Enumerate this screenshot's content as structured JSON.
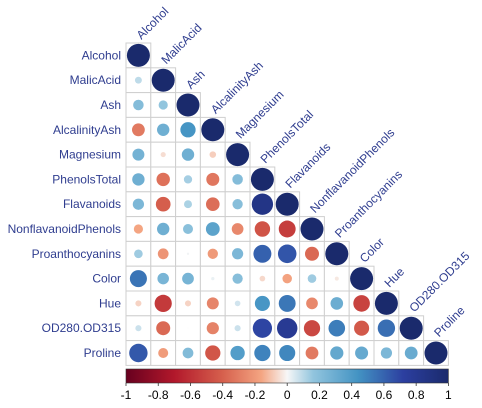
{
  "chart_data": {
    "type": "heatmap",
    "title": "",
    "variables": [
      "Alcohol",
      "MalicAcid",
      "Ash",
      "AlcalinityAsh",
      "Magnesium",
      "PhenolsTotal",
      "Flavanoids",
      "NonflavanoidPhenols",
      "Proanthocyanins",
      "Color",
      "Hue",
      "OD280.OD315",
      "Proline"
    ],
    "matrix": [
      [
        1,
        0.09,
        0.21,
        -0.31,
        0.27,
        0.29,
        0.24,
        -0.16,
        0.14,
        0.55,
        -0.07,
        0.07,
        0.64
      ],
      [
        0.09,
        1,
        0.16,
        0.29,
        -0.05,
        -0.34,
        -0.41,
        0.29,
        -0.22,
        0.25,
        -0.56,
        -0.37,
        -0.19
      ],
      [
        0.21,
        0.16,
        1,
        0.44,
        0.29,
        0.13,
        0.12,
        0.19,
        0.01,
        0.26,
        -0.07,
        0.0,
        0.22
      ],
      [
        -0.31,
        0.29,
        0.44,
        1,
        -0.08,
        -0.32,
        -0.35,
        0.36,
        -0.2,
        0.02,
        -0.27,
        -0.28,
        -0.44
      ],
      [
        0.27,
        -0.05,
        0.29,
        -0.08,
        1,
        0.21,
        0.2,
        -0.26,
        0.24,
        0.2,
        0.06,
        0.07,
        0.39
      ],
      [
        0.29,
        -0.34,
        0.13,
        -0.32,
        0.21,
        1,
        0.86,
        -0.45,
        0.61,
        -0.06,
        0.43,
        0.7,
        0.5
      ],
      [
        0.24,
        -0.41,
        0.12,
        -0.35,
        0.2,
        0.86,
        1,
        -0.54,
        0.65,
        -0.17,
        0.54,
        0.79,
        0.49
      ],
      [
        -0.16,
        0.29,
        0.19,
        0.36,
        -0.26,
        -0.45,
        -0.54,
        1,
        -0.37,
        0.14,
        -0.26,
        -0.5,
        -0.31
      ],
      [
        0.14,
        -0.22,
        0.01,
        -0.2,
        0.24,
        0.61,
        0.65,
        -0.37,
        1,
        -0.03,
        0.3,
        0.52,
        0.33
      ],
      [
        0.55,
        0.25,
        0.26,
        0.02,
        0.2,
        -0.06,
        -0.17,
        0.14,
        -0.03,
        1,
        -0.52,
        -0.43,
        0.32
      ],
      [
        -0.07,
        -0.56,
        -0.07,
        -0.27,
        0.06,
        0.43,
        0.54,
        -0.26,
        0.3,
        -0.52,
        1,
        0.57,
        0.24
      ],
      [
        0.07,
        -0.37,
        0.0,
        -0.28,
        0.07,
        0.7,
        0.79,
        -0.5,
        0.52,
        -0.43,
        0.57,
        1,
        0.31
      ],
      [
        0.64,
        -0.19,
        0.22,
        -0.44,
        0.39,
        0.5,
        0.49,
        -0.31,
        0.33,
        0.32,
        0.24,
        0.31,
        1
      ]
    ],
    "layout": "lower-triangle",
    "colorbar": {
      "range": [
        -1,
        1
      ],
      "ticks": [
        "-1",
        "-0.8",
        "-0.6",
        "-0.4",
        "-0.2",
        "0",
        "0.2",
        "0.4",
        "0.6",
        "0.8",
        "1"
      ],
      "colors": {
        "negative": "#67001f",
        "neg_mid": "#d6604d",
        "neutral": "#f7f7f7",
        "pos_mid": "#4393c3",
        "positive": "#1a2a6c"
      }
    }
  }
}
